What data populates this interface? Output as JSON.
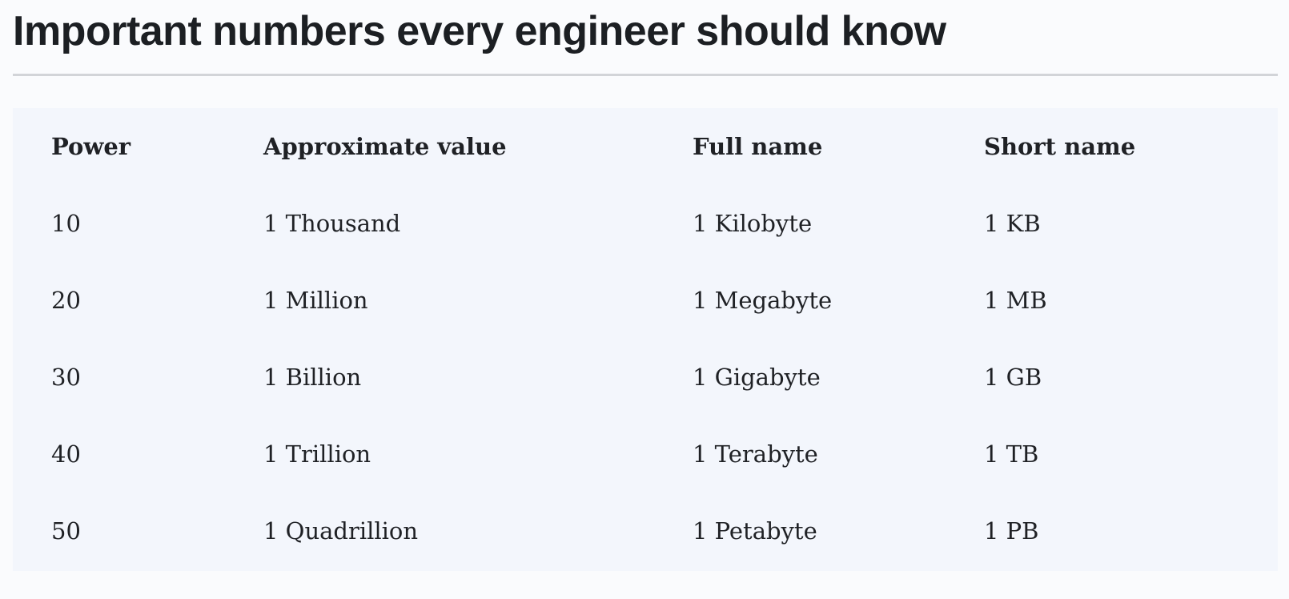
{
  "header": {
    "title": "Important numbers every engineer should know"
  },
  "table": {
    "columns": [
      "Power",
      "Approximate value",
      "Full name",
      "Short name"
    ],
    "rows": [
      [
        "10",
        "1 Thousand",
        "1 Kilobyte",
        "1 KB"
      ],
      [
        "20",
        "1 Million",
        "1 Megabyte",
        "1 MB"
      ],
      [
        "30",
        "1 Billion",
        "1 Gigabyte",
        "1 GB"
      ],
      [
        "40",
        "1 Trillion",
        "1 Terabyte",
        "1 TB"
      ],
      [
        "50",
        "1 Quadrillion",
        "1 Petabyte",
        "1 PB"
      ]
    ]
  },
  "colors": {
    "background": "#fafbfd",
    "table_background": "#f3f6fc",
    "divider": "#d2d4d8",
    "text": "#1f2125"
  }
}
